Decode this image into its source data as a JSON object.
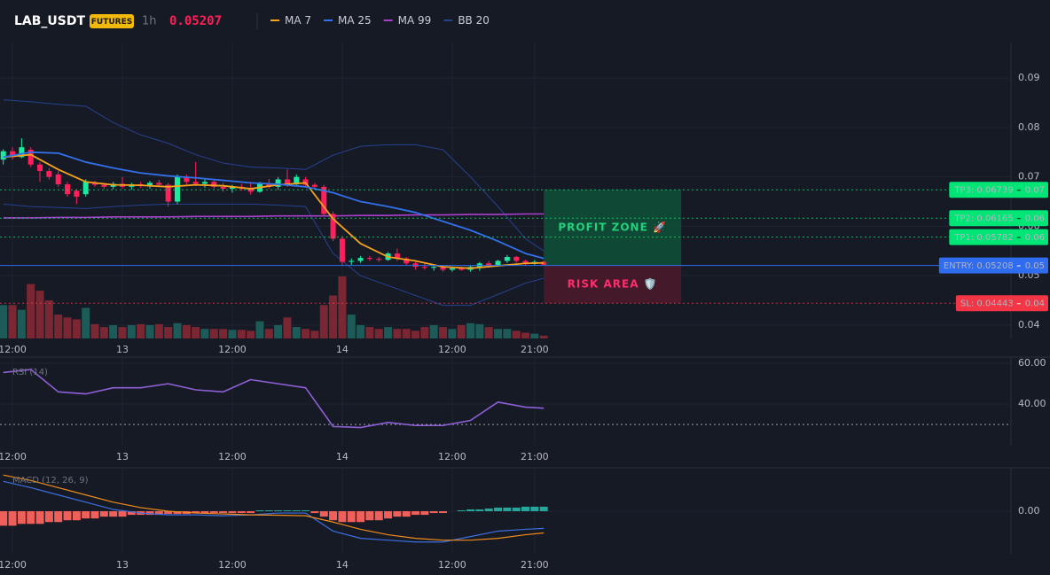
{
  "chart_data": [
    {
      "type": "candlestick",
      "symbol": "LAB_USDT",
      "badge": "FUTURES",
      "interval": "1h",
      "last_price": 0.05207,
      "legend": "top",
      "grid": true,
      "xlim": [
        10.64,
        121
      ],
      "xticks": [
        {
          "value": 12,
          "label": "12:00"
        },
        {
          "value": 24,
          "label": "13"
        },
        {
          "value": 36,
          "label": "12:00"
        },
        {
          "value": 48,
          "label": "14"
        },
        {
          "value": 60,
          "label": "12:00"
        },
        {
          "value": 69,
          "label": "21:00"
        }
      ],
      "ylim": [
        0.0373,
        0.0972
      ],
      "yticks": [
        0.04,
        0.05,
        0.06,
        0.07,
        0.08,
        0.09
      ],
      "up_color": "#1de9a0",
      "down_color": "#ff1f5a",
      "volume_up_color": "#1c5b57",
      "volume_down_color": "#7b2633",
      "x": [
        11,
        12,
        13,
        14,
        15,
        16,
        17,
        18,
        19,
        20,
        21,
        22,
        23,
        24,
        25,
        26,
        27,
        28,
        29,
        30,
        31,
        32,
        33,
        34,
        35,
        36,
        37,
        38,
        39,
        40,
        41,
        42,
        43,
        44,
        45,
        46,
        47,
        48,
        49,
        50,
        51,
        52,
        53,
        54,
        55,
        56,
        57,
        58,
        59,
        60,
        61,
        62,
        63,
        64,
        65,
        66,
        67,
        68,
        69,
        70
      ],
      "open": [
        0.0735,
        0.0752,
        0.074,
        0.0755,
        0.0725,
        0.0712,
        0.0705,
        0.0685,
        0.0672,
        0.0665,
        0.0688,
        0.0684,
        0.068,
        0.0686,
        0.068,
        0.0685,
        0.0682,
        0.0688,
        0.0684,
        0.065,
        0.07,
        0.069,
        0.0686,
        0.069,
        0.068,
        0.0676,
        0.068,
        0.0678,
        0.067,
        0.0686,
        0.068,
        0.0695,
        0.0685,
        0.0695,
        0.0684,
        0.068,
        0.0625,
        0.0575,
        0.0528,
        0.053,
        0.0536,
        0.0534,
        0.0532,
        0.0545,
        0.0535,
        0.0525,
        0.0518,
        0.0516,
        0.0518,
        0.0512,
        0.0515,
        0.0512,
        0.0518,
        0.0525,
        0.052,
        0.053,
        0.0538,
        0.053,
        0.0524,
        0.0528
      ],
      "high": [
        0.0756,
        0.076,
        0.0778,
        0.076,
        0.073,
        0.0718,
        0.0712,
        0.069,
        0.0675,
        0.0695,
        0.0692,
        0.0688,
        0.069,
        0.07,
        0.0688,
        0.069,
        0.0692,
        0.0694,
        0.0688,
        0.0705,
        0.0705,
        0.073,
        0.0695,
        0.0696,
        0.0688,
        0.0684,
        0.0686,
        0.069,
        0.069,
        0.0696,
        0.07,
        0.0715,
        0.0705,
        0.07,
        0.0688,
        0.0684,
        0.063,
        0.058,
        0.0535,
        0.054,
        0.054,
        0.0538,
        0.0548,
        0.0555,
        0.0538,
        0.053,
        0.0524,
        0.0522,
        0.052,
        0.0518,
        0.0518,
        0.052,
        0.0528,
        0.053,
        0.0532,
        0.0542,
        0.054,
        0.0532,
        0.0532,
        0.053
      ],
      "low": [
        0.0725,
        0.0735,
        0.0738,
        0.072,
        0.069,
        0.0695,
        0.068,
        0.066,
        0.0645,
        0.066,
        0.068,
        0.0676,
        0.0675,
        0.0676,
        0.0674,
        0.0678,
        0.0676,
        0.068,
        0.064,
        0.0645,
        0.0685,
        0.0682,
        0.0678,
        0.0676,
        0.067,
        0.0668,
        0.0672,
        0.0664,
        0.0668,
        0.0676,
        0.0674,
        0.068,
        0.0682,
        0.068,
        0.0676,
        0.062,
        0.057,
        0.052,
        0.0522,
        0.0526,
        0.053,
        0.0528,
        0.053,
        0.053,
        0.052,
        0.0512,
        0.0512,
        0.051,
        0.0508,
        0.0508,
        0.051,
        0.0508,
        0.051,
        0.0516,
        0.0518,
        0.0526,
        0.0526,
        0.052,
        0.052,
        0.052
      ],
      "close": [
        0.0752,
        0.074,
        0.076,
        0.0725,
        0.0712,
        0.07,
        0.0685,
        0.0665,
        0.066,
        0.069,
        0.0684,
        0.068,
        0.0686,
        0.068,
        0.0685,
        0.0682,
        0.0688,
        0.0684,
        0.065,
        0.07,
        0.069,
        0.0686,
        0.069,
        0.068,
        0.0676,
        0.068,
        0.0678,
        0.067,
        0.0686,
        0.068,
        0.0695,
        0.0685,
        0.07,
        0.0684,
        0.068,
        0.0625,
        0.0575,
        0.0528,
        0.053,
        0.0536,
        0.0534,
        0.0532,
        0.0545,
        0.0535,
        0.0525,
        0.0518,
        0.0516,
        0.0518,
        0.0512,
        0.0515,
        0.0512,
        0.0518,
        0.0525,
        0.052,
        0.053,
        0.0538,
        0.053,
        0.0524,
        0.0528,
        0.0522
      ],
      "volume": [
        35,
        35,
        30,
        57,
        50,
        40,
        25,
        22,
        20,
        32,
        15,
        12,
        14,
        12,
        14,
        15,
        14,
        15,
        12,
        16,
        14,
        12,
        10,
        10,
        10,
        9,
        9,
        8,
        18,
        10,
        14,
        22,
        12,
        10,
        8,
        35,
        45,
        65,
        25,
        14,
        12,
        10,
        12,
        10,
        10,
        8,
        12,
        14,
        12,
        10,
        14,
        16,
        15,
        12,
        10,
        10,
        8,
        6,
        5,
        3
      ],
      "line_x": [
        11,
        14,
        17,
        20,
        23,
        26,
        29,
        32,
        35,
        38,
        41,
        44,
        47,
        50,
        53,
        56,
        59,
        62,
        65,
        68,
        70
      ],
      "lines": [
        {
          "name": "MA 7",
          "color": "#f7a21b",
          "values": [
            0.074,
            0.0745,
            0.0715,
            0.069,
            0.0684,
            0.0683,
            0.068,
            0.0684,
            0.0682,
            0.0676,
            0.0684,
            0.0688,
            0.0615,
            0.0565,
            0.0538,
            0.053,
            0.0518,
            0.0515,
            0.052,
            0.0525,
            0.0526
          ]
        },
        {
          "name": "MA 25",
          "color": "#3271ea",
          "values": [
            0.074,
            0.075,
            0.0748,
            0.073,
            0.0718,
            0.0708,
            0.0702,
            0.0698,
            0.0693,
            0.0688,
            0.0685,
            0.068,
            0.0668,
            0.065,
            0.064,
            0.0628,
            0.061,
            0.0592,
            0.057,
            0.0545,
            0.0535
          ]
        },
        {
          "name": "MA 99",
          "color": "#a93fcc",
          "values": [
            0.0617,
            0.0617,
            0.0618,
            0.0618,
            0.0619,
            0.0619,
            0.0619,
            0.062,
            0.062,
            0.062,
            0.0621,
            0.0621,
            0.0621,
            0.0622,
            0.0622,
            0.0623,
            0.0623,
            0.0624,
            0.0624,
            0.0625,
            0.0625
          ]
        },
        {
          "name": "BB 20",
          "color": "#26428f",
          "upper": [
            0.0856,
            0.0852,
            0.0847,
            0.0843,
            0.081,
            0.0785,
            0.0768,
            0.0745,
            0.0728,
            0.072,
            0.0718,
            0.0715,
            0.0744,
            0.0762,
            0.0765,
            0.0765,
            0.0755,
            0.07,
            0.064,
            0.0575,
            0.055
          ],
          "lower": [
            0.0645,
            0.064,
            0.0638,
            0.0636,
            0.064,
            0.0643,
            0.0645,
            0.0645,
            0.0645,
            0.0645,
            0.0643,
            0.064,
            0.0545,
            0.05,
            0.048,
            0.046,
            0.044,
            0.044,
            0.0462,
            0.0485,
            0.0495
          ]
        }
      ],
      "levels": [
        {
          "label": "TP3: 0.06739",
          "axis_label": "0.07",
          "value": 0.06739,
          "color": "#00e676",
          "text_color": "#0b1a12",
          "style": "dotted"
        },
        {
          "label": "TP2: 0.06165",
          "axis_label": "0.06",
          "value": 0.06165,
          "color": "#00e676",
          "text_color": "#0b1a12",
          "style": "dotted"
        },
        {
          "label": "TP1: 0.05782",
          "axis_label": "0.06",
          "value": 0.05782,
          "color": "#00e676",
          "text_color": "#0b1a12",
          "style": "dotted"
        },
        {
          "label": "ENTRY: 0.05208",
          "axis_label": "0.05",
          "value": 0.05208,
          "color": "#2f6cf0",
          "text_color": "#ffffff",
          "style": "solid"
        },
        {
          "label": "SL: 0.04443",
          "axis_label": "0.04",
          "value": 0.04443,
          "color": "#f23645",
          "text_color": "#ffffff",
          "style": "dotted"
        }
      ],
      "zone_x": [
        70,
        85
      ],
      "zones": [
        {
          "label": "PROFIT ZONE 🚀",
          "from": 0.06739,
          "to": 0.05208,
          "color": "#0e5238",
          "text_color": "#25d07d"
        },
        {
          "label": "RISK AREA 🛡️",
          "from": 0.05208,
          "to": 0.04443,
          "color": "#4c1a2c",
          "text_color": "#ff2d6e"
        }
      ]
    },
    {
      "type": "line",
      "title": "RSI (14)",
      "grid": true,
      "xlim": [
        10.64,
        121
      ],
      "xticks": [
        {
          "value": 12,
          "label": "12:00"
        },
        {
          "value": 24,
          "label": "13"
        },
        {
          "value": 36,
          "label": "12:00"
        },
        {
          "value": 48,
          "label": "14"
        },
        {
          "value": 60,
          "label": "12:00"
        },
        {
          "value": 69,
          "label": "21:00"
        }
      ],
      "ylim": [
        19.6,
        63.1
      ],
      "yticks": [
        {
          "value": 60,
          "label": "60.00"
        },
        {
          "value": 40,
          "label": "40.00"
        }
      ],
      "level": 30,
      "line_x": [
        11,
        14,
        17,
        20,
        23,
        26,
        29,
        32,
        35,
        38,
        41,
        44,
        47,
        50,
        53,
        56,
        59,
        62,
        65,
        68,
        70
      ],
      "color": "#8e5fd6",
      "values": [
        55.5,
        57,
        46,
        45,
        48,
        48,
        50,
        47,
        46,
        52,
        50,
        48,
        29,
        28.5,
        31,
        29.5,
        29.5,
        32,
        41,
        38.5,
        38
      ]
    },
    {
      "type": "macd",
      "title": "MACD (12, 26, 9)",
      "grid": true,
      "xlim": [
        10.64,
        121
      ],
      "xticks": [
        {
          "value": 12,
          "label": "12:00"
        },
        {
          "value": 24,
          "label": "13"
        },
        {
          "value": 36,
          "label": "12:00"
        },
        {
          "value": 48,
          "label": "14"
        },
        {
          "value": 60,
          "label": "12:00"
        },
        {
          "value": 69,
          "label": "21:00"
        }
      ],
      "ylim": [
        -0.00235,
        0.0024
      ],
      "yticks": [
        {
          "value": 0,
          "label": "0.00"
        }
      ],
      "line_x": [
        11,
        14,
        17,
        20,
        23,
        26,
        29,
        32,
        35,
        38,
        41,
        44,
        47,
        50,
        53,
        56,
        59,
        62,
        65,
        68,
        70
      ],
      "macd": {
        "color": "#3d6fe0",
        "values": [
          0.00165,
          0.0013,
          0.0009,
          0.0005,
          0.0001,
          -0.0001,
          -0.0002,
          -0.0002,
          -0.00025,
          -0.0002,
          -0.0001,
          -0.0001,
          -0.0011,
          -0.0015,
          -0.0016,
          -0.0017,
          -0.0017,
          -0.0014,
          -0.0011,
          -0.001,
          -0.00095
        ]
      },
      "signal": {
        "color": "#f08c1a",
        "values": [
          0.002,
          0.0017,
          0.0013,
          0.0009,
          0.0005,
          0.0002,
          0,
          -0.0001,
          -0.00015,
          -0.0002,
          -0.00022,
          -0.00025,
          -0.0006,
          -0.001,
          -0.0013,
          -0.0015,
          -0.0016,
          -0.0016,
          -0.0015,
          -0.0013,
          -0.0012
        ]
      },
      "x": [
        11,
        12,
        13,
        14,
        15,
        16,
        17,
        18,
        19,
        20,
        21,
        22,
        23,
        24,
        25,
        26,
        27,
        28,
        29,
        30,
        31,
        32,
        33,
        34,
        35,
        36,
        37,
        38,
        39,
        40,
        41,
        42,
        43,
        44,
        45,
        46,
        47,
        48,
        49,
        50,
        51,
        52,
        53,
        54,
        55,
        56,
        57,
        58,
        59,
        60,
        61,
        62,
        63,
        64,
        65,
        66,
        67,
        68,
        69,
        70
      ],
      "histogram_up_color": "#26a69a",
      "histogram_down_color": "#f0605a",
      "histogram": [
        -0.0008,
        -0.0008,
        -0.0007,
        -0.0007,
        -0.0007,
        -0.0006,
        -0.0006,
        -0.0005,
        -0.0005,
        -0.0004,
        -0.0004,
        -0.0003,
        -0.0003,
        -0.0003,
        -0.0002,
        -0.0002,
        -0.0002,
        -0.0002,
        -0.00015,
        -0.00015,
        -0.00015,
        -0.0001,
        -0.0001,
        -0.0001,
        -0.0001,
        -0.0001,
        -0.0001,
        -0.0001,
        5e-05,
        5e-05,
        5e-05,
        5e-05,
        5e-05,
        5e-05,
        -0.0001,
        -0.0003,
        -0.0005,
        -0.0006,
        -0.0006,
        -0.0006,
        -0.0005,
        -0.0005,
        -0.0004,
        -0.0003,
        -0.0003,
        -0.0002,
        -0.0002,
        -0.0001,
        -0.0001,
        0,
        5e-05,
        0.0001,
        0.0001,
        0.00015,
        0.0002,
        0.0002,
        0.0002,
        0.00025,
        0.00025,
        0.00025
      ]
    }
  ]
}
